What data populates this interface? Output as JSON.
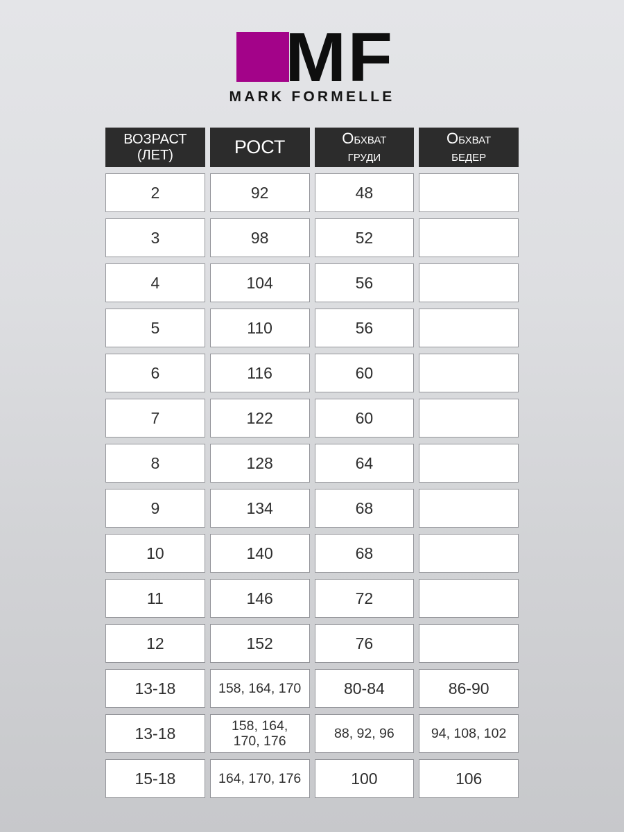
{
  "brand": {
    "monogram": "MF",
    "name": "MARK FORMELLE",
    "accent_color": "#a30389",
    "monogram_color": "#0e0e0e"
  },
  "table": {
    "headers": [
      {
        "lines": [
          "ВОЗРАСТ",
          "(ЛЕТ)"
        ]
      },
      {
        "lines": [
          "РОСТ"
        ]
      },
      {
        "lines": [
          "Обхват",
          "груди"
        ]
      },
      {
        "lines": [
          "Обхват",
          "бедер"
        ]
      }
    ],
    "rows": [
      [
        "2",
        "92",
        "48",
        ""
      ],
      [
        "3",
        "98",
        "52",
        ""
      ],
      [
        "4",
        "104",
        "56",
        ""
      ],
      [
        "5",
        "110",
        "56",
        ""
      ],
      [
        "6",
        "116",
        "60",
        ""
      ],
      [
        "7",
        "122",
        "60",
        ""
      ],
      [
        "8",
        "128",
        "64",
        ""
      ],
      [
        "9",
        "134",
        "68",
        ""
      ],
      [
        "10",
        "140",
        "68",
        ""
      ],
      [
        "11",
        "146",
        "72",
        ""
      ],
      [
        "12",
        "152",
        "76",
        ""
      ],
      [
        "13-18",
        "158, 164, 170",
        "80-84",
        "86-90"
      ],
      [
        "13-18",
        "158, 164,\n170, 176",
        "88, 92, 96",
        "94, 108, 102"
      ],
      [
        "15-18",
        "164, 170, 176",
        "100",
        "106"
      ]
    ]
  }
}
